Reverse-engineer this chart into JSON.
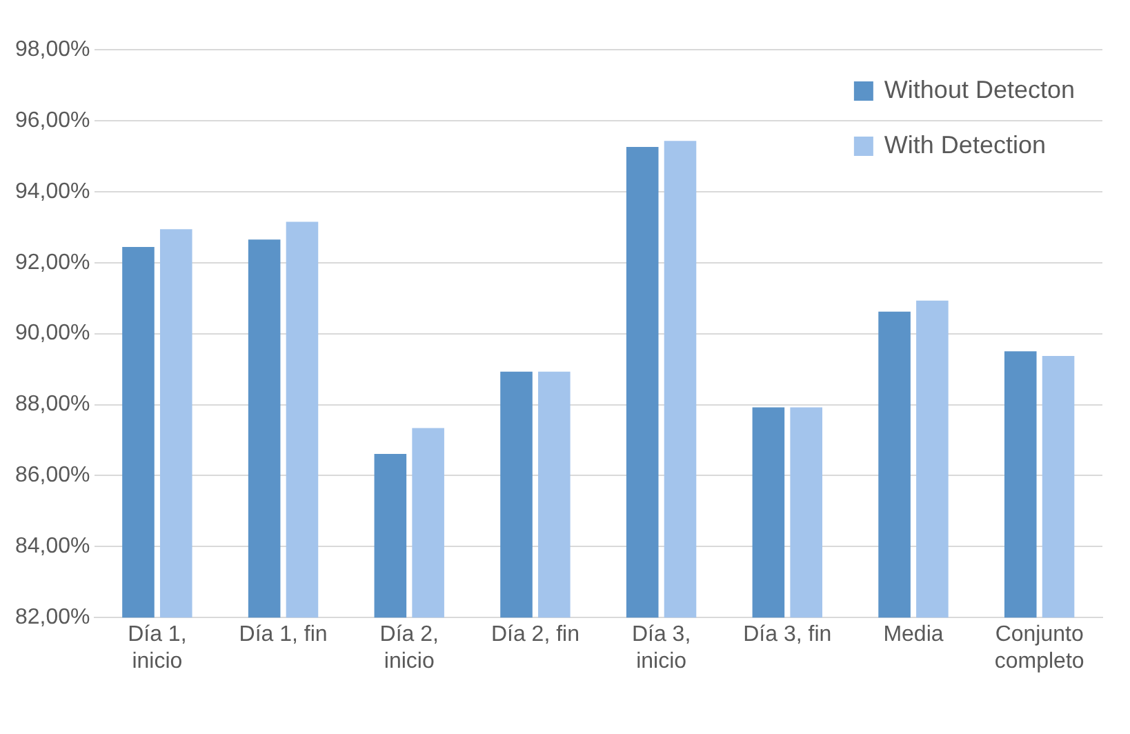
{
  "chart_data": {
    "type": "bar",
    "categories": [
      "Día 1, inicio",
      "Día 1, fin",
      "Día 2, inicio",
      "Día 2, fin",
      "Día 3, inicio",
      "Día 3, fin",
      "Media",
      "Conjunto completo"
    ],
    "series": [
      {
        "name": "Without Detecton",
        "color": "#5b93c8",
        "values": [
          92.44,
          92.65,
          86.61,
          88.93,
          95.26,
          87.92,
          90.62,
          89.5
        ]
      },
      {
        "name": "With Detection",
        "color": "#a3c4ec",
        "values": [
          92.94,
          93.15,
          87.34,
          88.93,
          95.43,
          87.92,
          90.93,
          89.37
        ]
      }
    ],
    "ylim": [
      82,
      98
    ],
    "yticks": [
      {
        "value": 82,
        "label": "82,00%"
      },
      {
        "value": 84,
        "label": "84,00%"
      },
      {
        "value": 86,
        "label": "86,00%"
      },
      {
        "value": 88,
        "label": "88,00%"
      },
      {
        "value": 90,
        "label": "90,00%"
      },
      {
        "value": 92,
        "label": "92,00%"
      },
      {
        "value": 94,
        "label": "94,00%"
      },
      {
        "value": 96,
        "label": "96,00%"
      },
      {
        "value": 98,
        "label": "98,00%"
      }
    ],
    "grid": "y",
    "legend": "top right"
  }
}
